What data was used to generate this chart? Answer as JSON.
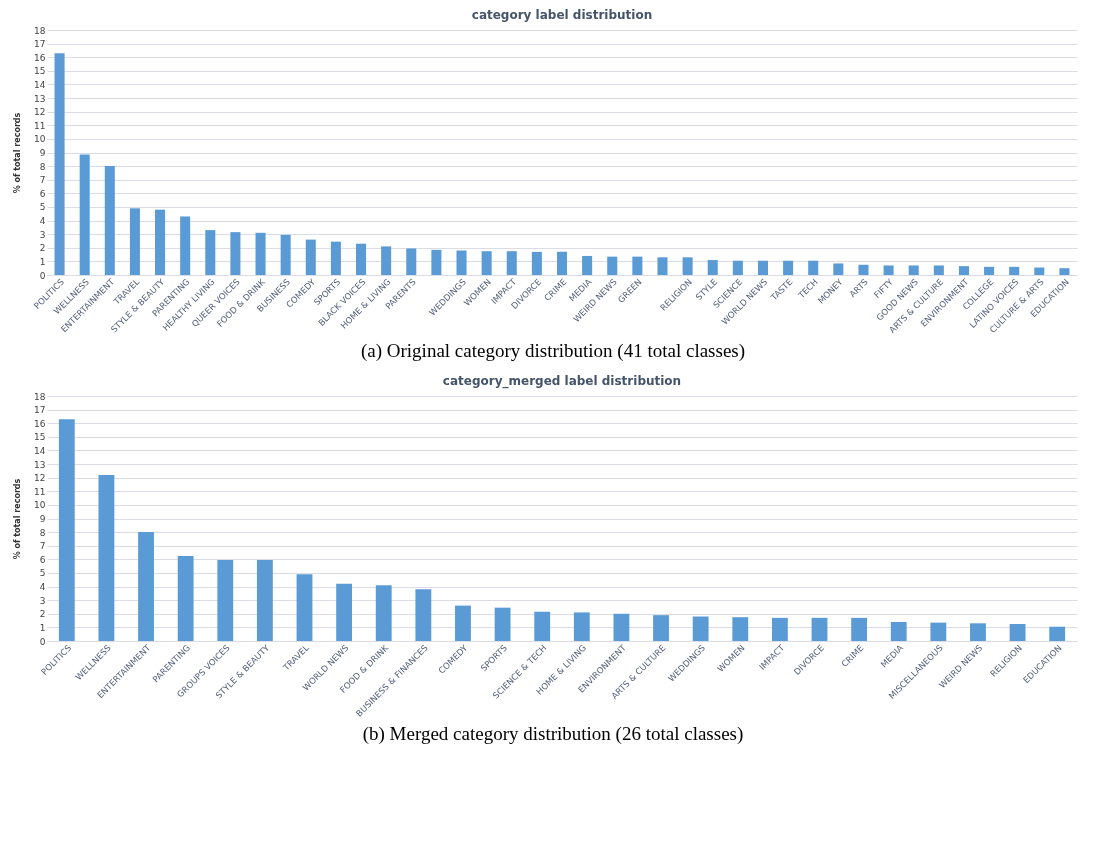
{
  "chart_data": [
    {
      "type": "bar",
      "title": "category label distribution",
      "ylabel": "% of total records",
      "annotations": [
        "(a) Original category distribution (41 total classes)"
      ],
      "categories": [
        "POLITICS",
        "WELLNESS",
        "ENTERTAINMENT",
        "TRAVEL",
        "STYLE & BEAUTY",
        "PARENTING",
        "HEALTHY LIVING",
        "QUEER VOICES",
        "FOOD & DRINK",
        "BUSINESS",
        "COMEDY",
        "SPORTS",
        "BLACK VOICES",
        "HOME & LIVING",
        "PARENTS",
        null,
        "WEDDINGS",
        "WOMEN",
        "IMPACT",
        "DIVORCE",
        "CRIME",
        "MEDIA",
        "WEIRD NEWS",
        "GREEN",
        null,
        "RELIGION",
        "STYLE",
        "SCIENCE",
        "WORLD NEWS",
        "TASTE",
        "TECH",
        "MONEY",
        "ARTS",
        "FIFTY",
        "GOOD NEWS",
        "ARTS & CULTURE",
        "ENVIRONMENT",
        "COLLEGE",
        "LATINO VOICES",
        "CULTURE & ARTS",
        "EDUCATION"
      ],
      "values": [
        16.3,
        8.85,
        8.0,
        4.9,
        4.8,
        4.3,
        3.3,
        3.15,
        3.1,
        2.95,
        2.6,
        2.45,
        2.3,
        2.1,
        1.95,
        1.85,
        1.8,
        1.75,
        1.75,
        1.7,
        1.7,
        1.4,
        1.35,
        1.35,
        1.3,
        1.3,
        1.1,
        1.05,
        1.05,
        1.05,
        1.05,
        0.85,
        0.75,
        0.7,
        0.7,
        0.7,
        0.65,
        0.6,
        0.6,
        0.55,
        0.5
      ],
      "color": "#5b9bd5",
      "ylim": [
        0,
        18
      ],
      "yticks": [
        0,
        1,
        2,
        3,
        4,
        5,
        6,
        7,
        8,
        9,
        10,
        11,
        12,
        13,
        14,
        15,
        16,
        17,
        18
      ],
      "grid": "y"
    },
    {
      "type": "bar",
      "title": "category_merged label distribution",
      "ylabel": "% of total records",
      "annotations": [
        "(b) Merged category distribution (26 total classes)"
      ],
      "categories": [
        "POLITICS",
        "WELLNESS",
        "ENTERTAINMENT",
        "PARENTING",
        "GROUPS VOICES",
        "STYLE & BEAUTY",
        "TRAVEL",
        "WORLD NEWS",
        "FOOD & DRINK",
        "BUSINESS & FINANCES",
        "COMEDY",
        "SPORTS",
        "SCIENCE & TECH",
        "HOME & LIVING",
        "ENVIRONMENT",
        "ARTS & CULTURE",
        "WEDDINGS",
        "WOMEN",
        "IMPACT",
        "DIVORCE",
        "CRIME",
        "MEDIA",
        "MISCELLANEOUS",
        "WEIRD NEWS",
        "RELIGION",
        "EDUCATION"
      ],
      "values": [
        16.3,
        12.2,
        8.0,
        6.25,
        5.95,
        5.95,
        4.9,
        4.2,
        4.1,
        3.8,
        2.6,
        2.45,
        2.15,
        2.1,
        2.0,
        1.9,
        1.8,
        1.75,
        1.7,
        1.7,
        1.7,
        1.4,
        1.35,
        1.3,
        1.25,
        1.05
      ],
      "color": "#5b9bd5",
      "ylim": [
        0,
        18
      ],
      "yticks": [
        0,
        1,
        2,
        3,
        4,
        5,
        6,
        7,
        8,
        9,
        10,
        11,
        12,
        13,
        14,
        15,
        16,
        17,
        18
      ],
      "grid": "y"
    }
  ]
}
